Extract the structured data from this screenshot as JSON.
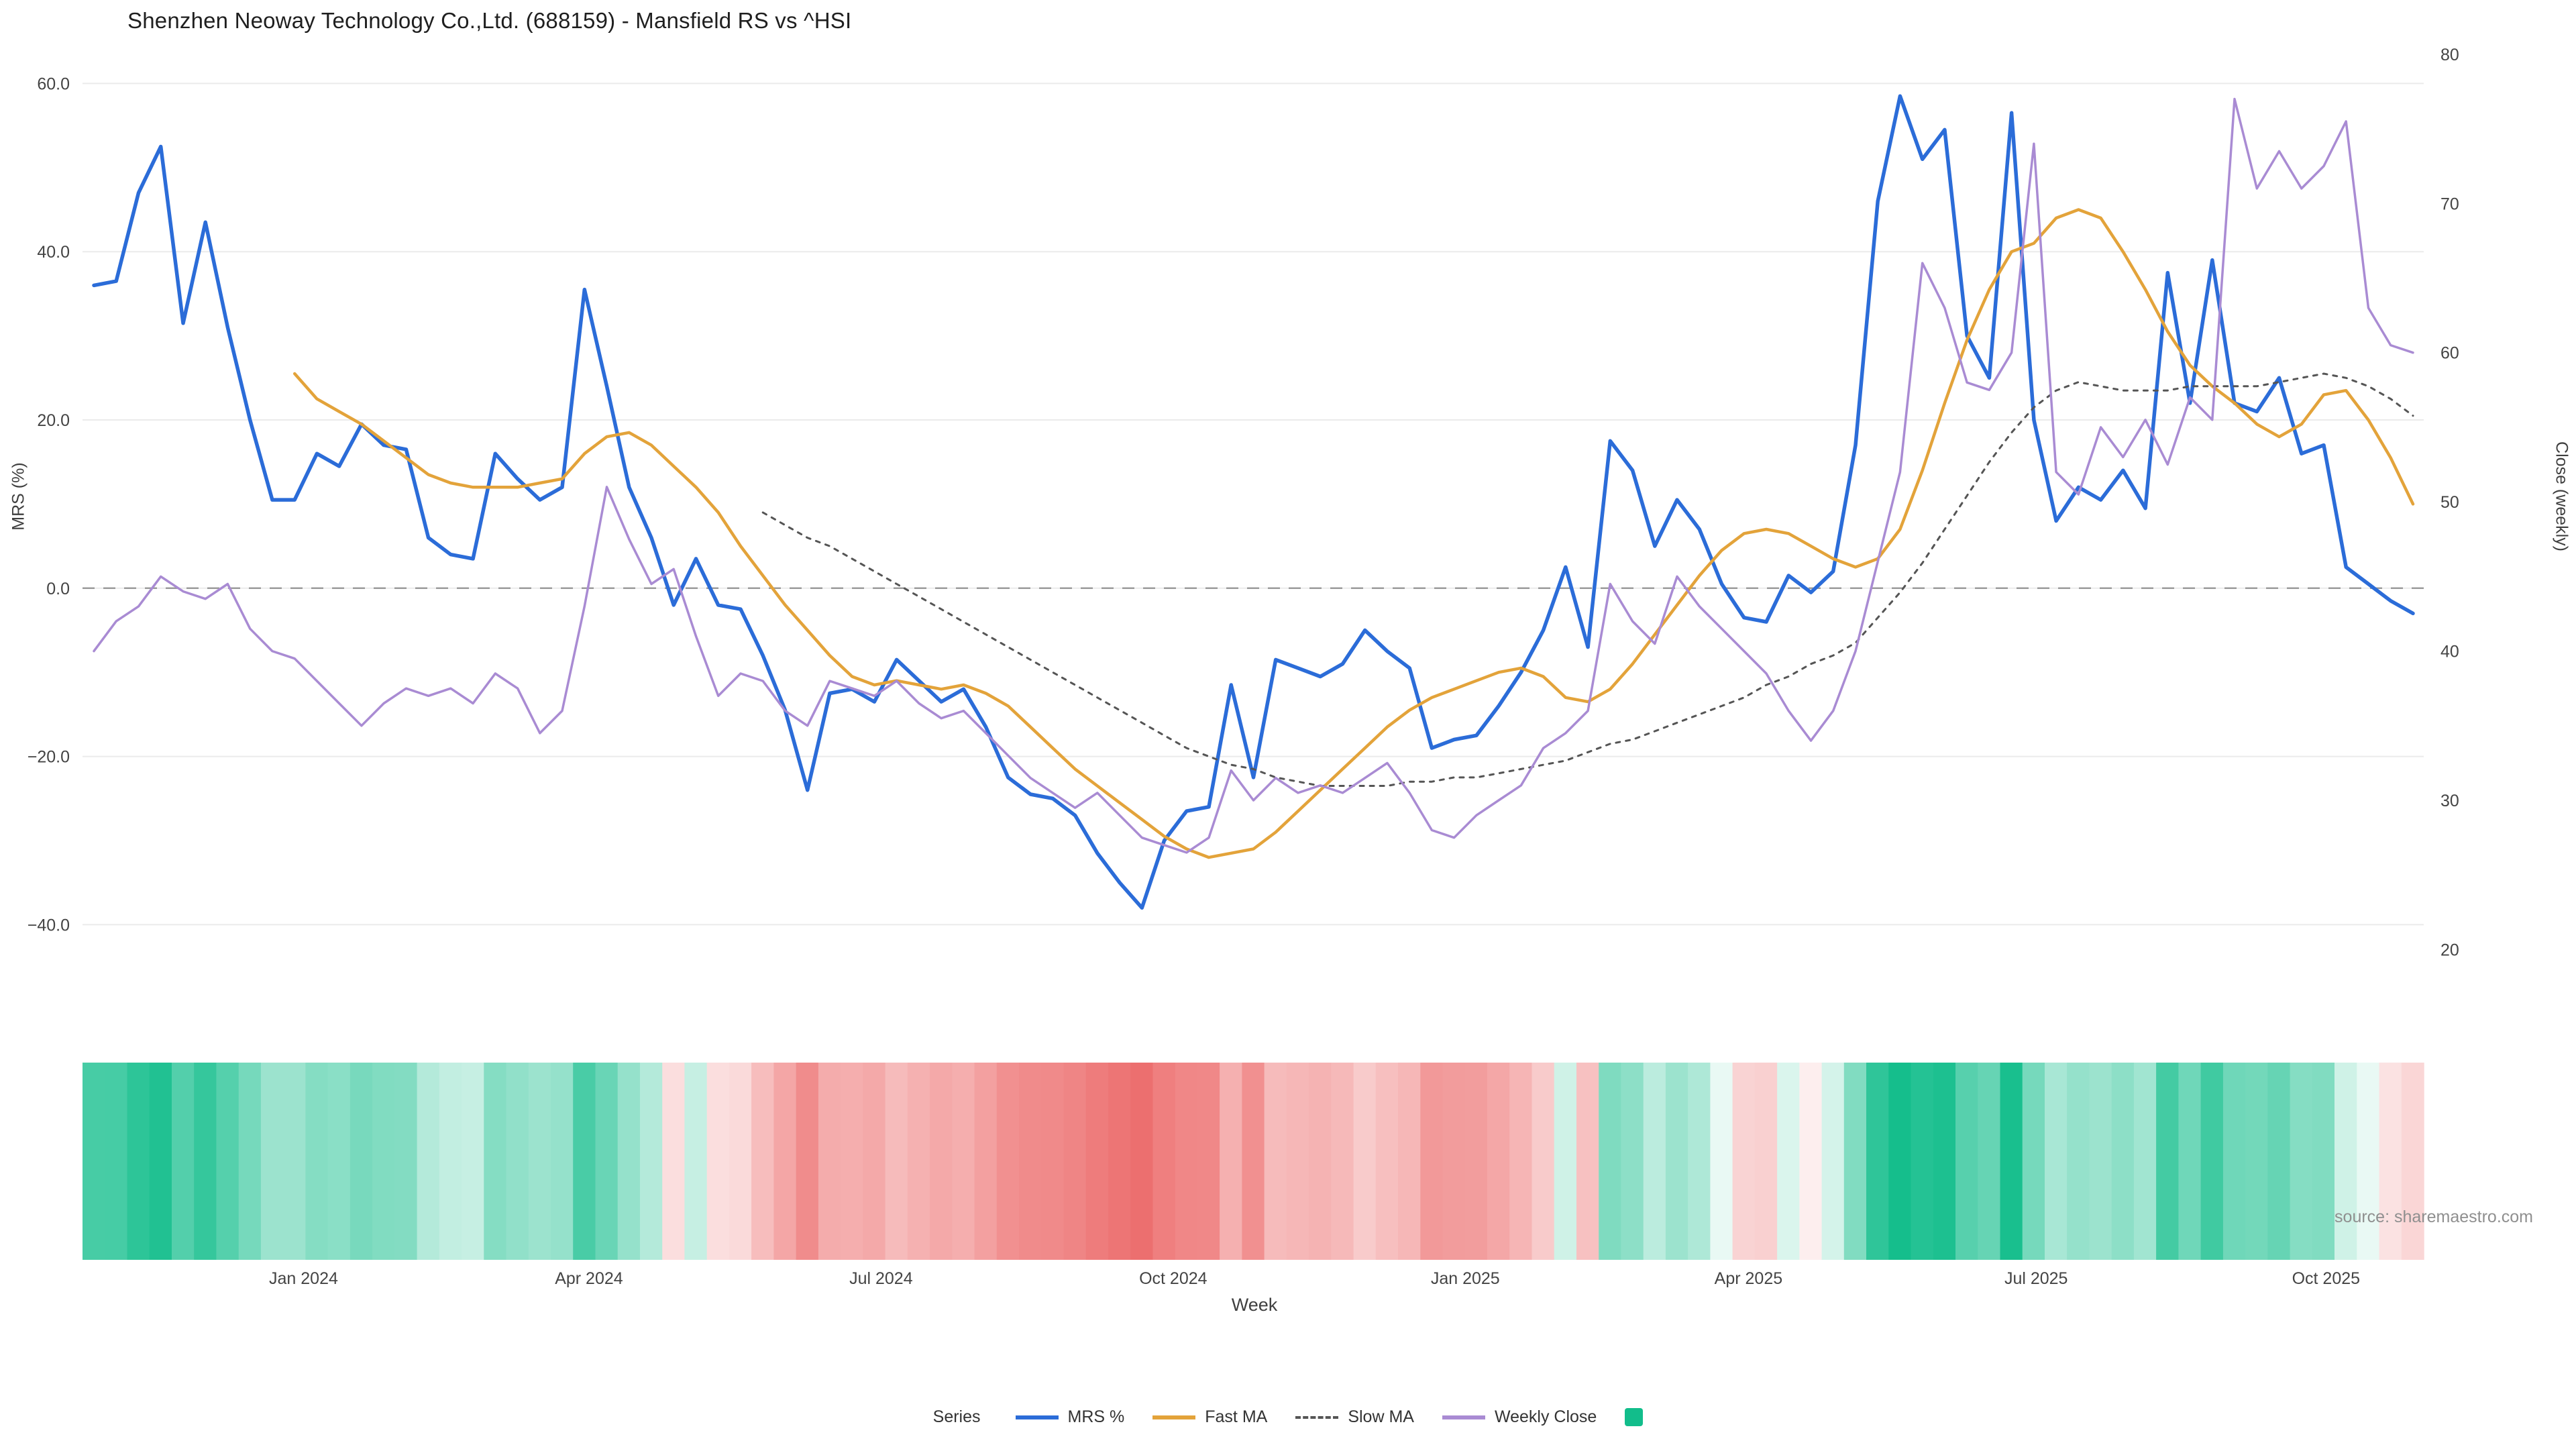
{
  "title": "Shenzhen Neoway Technology Co.,Ltd. (688159) - Mansfield RS vs ^HSI",
  "source_note": "source: sharemaestro.com",
  "axes": {
    "left": {
      "title": "MRS (%)",
      "ticks": [
        60,
        40,
        20,
        0,
        -20,
        -40
      ],
      "tick_labels": [
        "60.0",
        "40.0",
        "20.0",
        "0.0",
        "−20.0",
        "−40.0"
      ]
    },
    "right": {
      "title": "Close (weekly)",
      "ticks": [
        80,
        70,
        60,
        50,
        40,
        30,
        20
      ]
    },
    "x": {
      "title": "Week",
      "tick_labels": [
        "Jan 2024",
        "Apr 2024",
        "Jul 2024",
        "Oct 2024",
        "Jan 2025",
        "Apr 2025",
        "Jul 2025",
        "Oct 2025"
      ],
      "tick_week_positions": [
        9.4,
        22.2,
        35.3,
        48.4,
        61.5,
        74.2,
        87.1,
        100.1
      ]
    }
  },
  "legend": {
    "label": "Series",
    "items": [
      {
        "label": "MRS %",
        "color": "#2b6cd8",
        "style": "line"
      },
      {
        "label": "Fast MA",
        "color": "#e3a33a",
        "style": "line"
      },
      {
        "label": "Slow MA",
        "color": "#555555",
        "style": "dashed"
      },
      {
        "label": "Weekly Close",
        "color": "#a98bd3",
        "style": "line"
      },
      {
        "label": "",
        "color": "#12bd8b",
        "style": "square"
      }
    ]
  },
  "chart_data": {
    "type": "line",
    "title": "Shenzhen Neoway Technology Co.,Ltd. (688159) - Mansfield RS vs ^HSI",
    "xlabel": "Week",
    "ylabel_left": "MRS (%)",
    "ylabel_right": "Close (weekly)",
    "x_unit": "week_index (0 = late Oct 2023, weekly through Nov 2025)",
    "ylim_left": [
      -45,
      62
    ],
    "ylim_right": [
      18,
      81
    ],
    "zero_line": true,
    "grid": true,
    "legend_position": "bottom-center",
    "series": [
      {
        "name": "MRS %",
        "axis": "left",
        "color": "#2b6cd8",
        "start_week": 0,
        "values": [
          36,
          36.5,
          47,
          52.5,
          31.5,
          43.5,
          31,
          20,
          10.5,
          10.5,
          16,
          14.5,
          19.5,
          17,
          16.5,
          6,
          4,
          3.5,
          16,
          13,
          10.5,
          12,
          35.5,
          24,
          12,
          6,
          -2,
          3.5,
          -2,
          -2.5,
          -8,
          -14.5,
          -24,
          -12.5,
          -12,
          -13.5,
          -8.5,
          -11,
          -13.5,
          -12,
          -16.5,
          -22.5,
          -24.5,
          -25,
          -27,
          -31.5,
          -35,
          -38,
          -30,
          -26.5,
          -26,
          -11.5,
          -22.5,
          -8.5,
          -9.5,
          -10.5,
          -9,
          -5,
          -7.5,
          -9.5,
          -19,
          -18,
          -17.5,
          -14,
          -10,
          -5,
          2.5,
          -7,
          17.5,
          14,
          5,
          10.5,
          7,
          0.5,
          -3.5,
          -4,
          1.5,
          -0.5,
          2,
          17,
          46,
          58.5,
          51,
          54.5,
          30,
          25,
          56.5,
          20,
          8,
          12,
          10.5,
          14,
          9.5,
          37.5,
          22,
          39,
          22,
          21,
          25,
          16,
          17,
          2.5,
          0.5,
          -1.5,
          -3
        ]
      },
      {
        "name": "Fast MA",
        "axis": "left",
        "color": "#e3a33a",
        "start_week": 9,
        "values": [
          25.5,
          22.5,
          21,
          19.5,
          17.5,
          15.5,
          13.5,
          12.5,
          12,
          12,
          12,
          12.5,
          13,
          16,
          18,
          18.5,
          17,
          14.5,
          12,
          9,
          5,
          1.5,
          -2,
          -5,
          -8,
          -10.5,
          -11.5,
          -11,
          -11.5,
          -12,
          -11.5,
          -12.5,
          -14,
          -16.5,
          -19,
          -21.5,
          -23.5,
          -25.5,
          -27.5,
          -29.5,
          -31,
          -32,
          -31.5,
          -31,
          -29,
          -26.5,
          -24,
          -21.5,
          -19,
          -16.5,
          -14.5,
          -13,
          -12,
          -11,
          -10,
          -9.5,
          -10.5,
          -13,
          -13.5,
          -12,
          -9,
          -5.5,
          -2,
          1.5,
          4.5,
          6.5,
          7,
          6.5,
          5,
          3.5,
          2.5,
          3.5,
          7,
          14,
          22,
          29.5,
          35.5,
          40,
          41,
          44,
          45,
          44,
          40,
          35.5,
          30.5,
          26.5,
          24,
          22,
          19.5,
          18,
          19.5,
          23,
          23.5,
          20,
          15.5,
          10
        ]
      },
      {
        "name": "Slow MA",
        "axis": "left",
        "color": "#555555",
        "dash": true,
        "start_week": 30,
        "values": [
          9,
          7.5,
          6,
          5,
          3.5,
          2,
          0.5,
          -1,
          -2.5,
          -4,
          -5.5,
          -7,
          -8.5,
          -10,
          -11.5,
          -13,
          -14.5,
          -16,
          -17.5,
          -19,
          -20,
          -21,
          -21.5,
          -22.5,
          -23,
          -23.5,
          -23.5,
          -23.5,
          -23.5,
          -23,
          -23,
          -22.5,
          -22.5,
          -22,
          -21.5,
          -21,
          -20.5,
          -19.5,
          -18.5,
          -18,
          -17,
          -16,
          -15,
          -14,
          -13,
          -11.5,
          -10.5,
          -9,
          -8,
          -6.5,
          -3.5,
          -0.5,
          3,
          7,
          11,
          15,
          18.5,
          21.5,
          23.5,
          24.5,
          24,
          23.5,
          23.5,
          23.5,
          24,
          24,
          24,
          24,
          24.5,
          25,
          25.5,
          25,
          24,
          22.5,
          20.5
        ]
      },
      {
        "name": "Weekly Close",
        "axis": "right",
        "color": "#a98bd3",
        "start_week": 0,
        "values": [
          40,
          42,
          43,
          45,
          44,
          43.5,
          44.5,
          41.5,
          40,
          39.5,
          38,
          36.5,
          35,
          36.5,
          37.5,
          37,
          37.5,
          36.5,
          38.5,
          37.5,
          34.5,
          36,
          43,
          51,
          47.5,
          44.5,
          45.5,
          41,
          37,
          38.5,
          38,
          36,
          35,
          38,
          37.5,
          37,
          38,
          36.5,
          35.5,
          36,
          34.5,
          33,
          31.5,
          30.5,
          29.5,
          30.5,
          29,
          27.5,
          27,
          26.5,
          27.5,
          32,
          30,
          31.5,
          30.5,
          31,
          30.5,
          31.5,
          32.5,
          30.5,
          28,
          27.5,
          29,
          30,
          31,
          33.5,
          34.5,
          36,
          44.5,
          42,
          40.5,
          45,
          43,
          41.5,
          40,
          38.5,
          36,
          34,
          36,
          40,
          46,
          52,
          66,
          63,
          58,
          57.5,
          60,
          74,
          52,
          50.5,
          55,
          53,
          55.5,
          52.5,
          57,
          55.5,
          77,
          71,
          73.5,
          71,
          72.5,
          75.5,
          63,
          60.5,
          60
        ]
      }
    ],
    "heatmap": {
      "metric": "MRS %",
      "description": "weekly strip below plot colored by MRS % value",
      "positive_color": "#12bd8b",
      "negative_color": "#ec6b6b",
      "positive_max": 60,
      "negative_max": 40
    }
  },
  "colors": {
    "background": "#ffffff",
    "grid": "#ebebeb",
    "zero_line": "#9b9b9b",
    "tick_text": "#444444"
  }
}
